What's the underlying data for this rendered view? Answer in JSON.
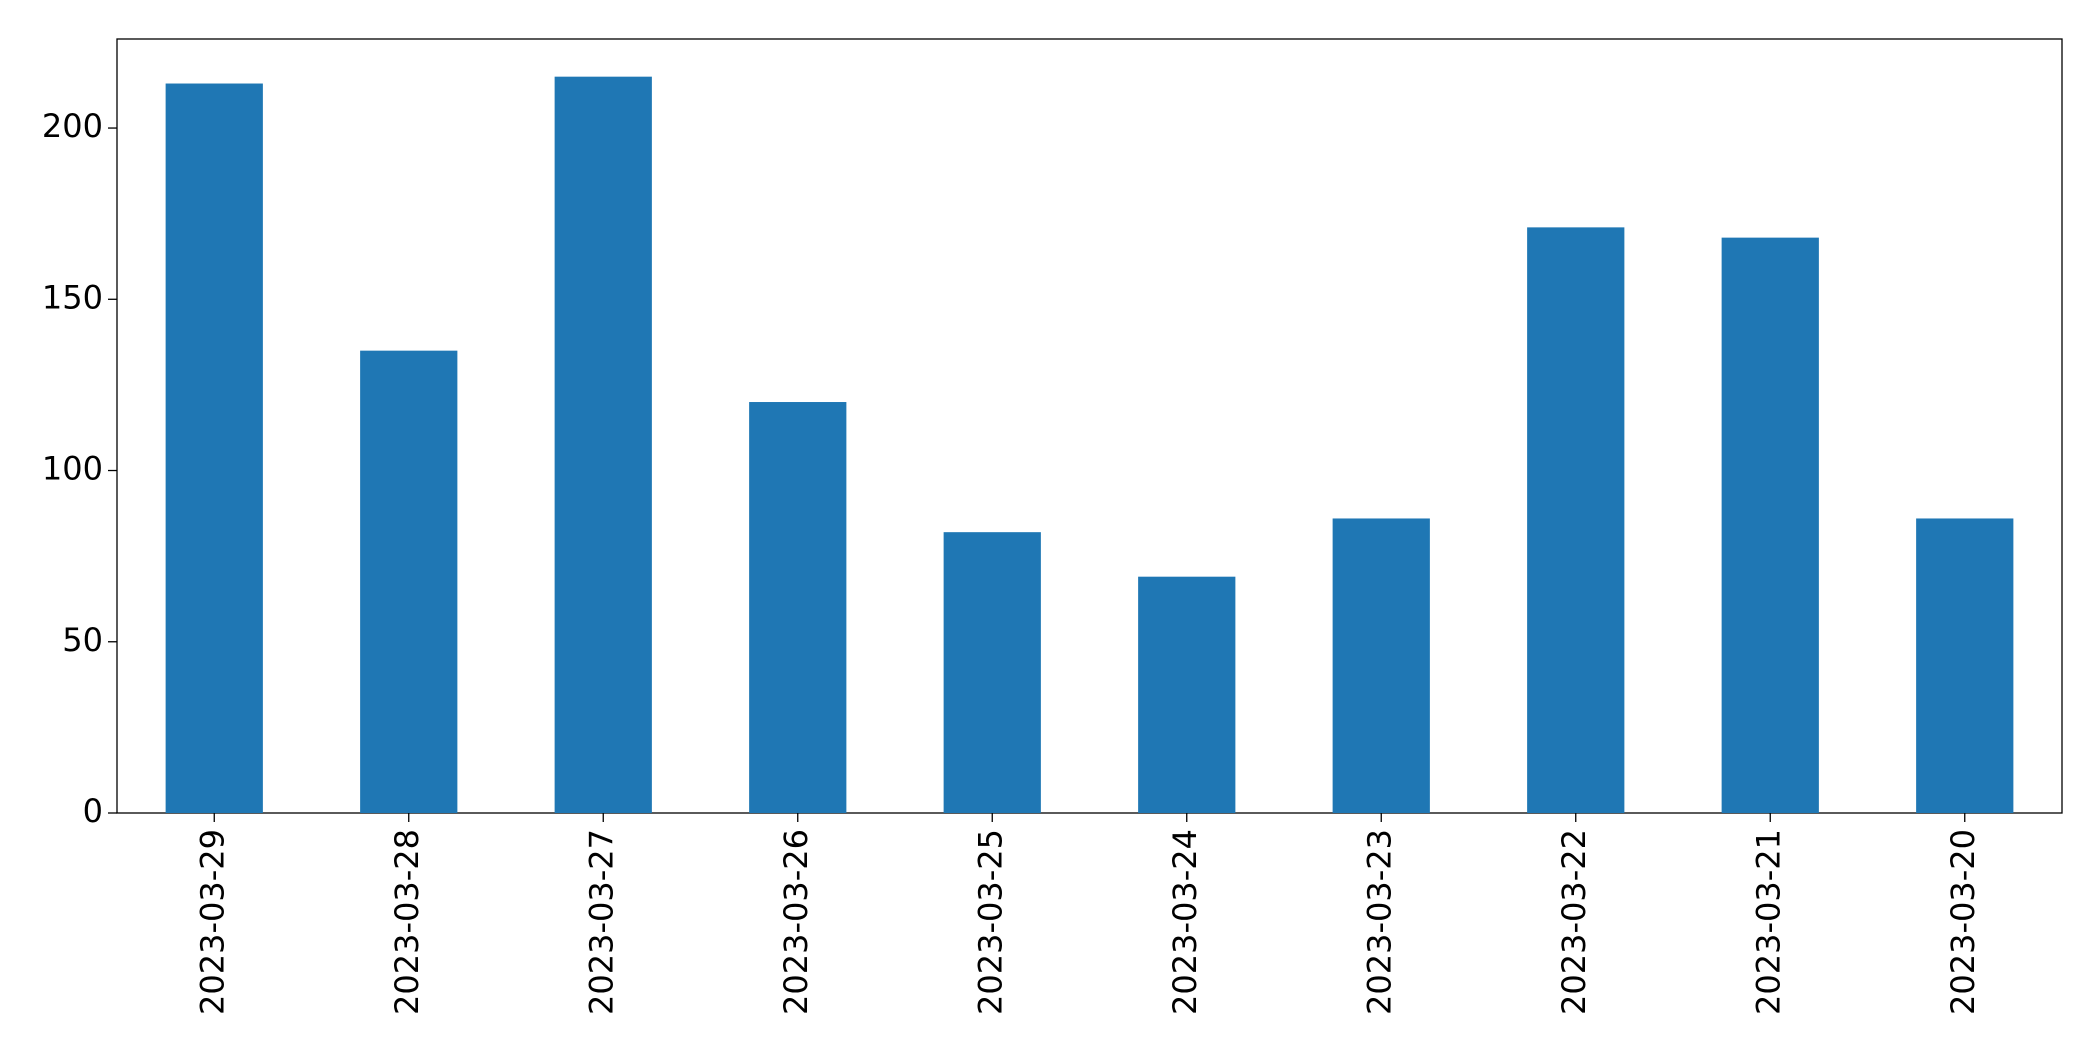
{
  "chart_data": {
    "type": "bar",
    "categories": [
      "2023-03-29",
      "2023-03-28",
      "2023-03-27",
      "2023-03-26",
      "2023-03-25",
      "2023-03-24",
      "2023-03-23",
      "2023-03-22",
      "2023-03-21",
      "2023-03-20"
    ],
    "values": [
      213,
      135,
      215,
      120,
      82,
      69,
      86,
      171,
      168,
      86
    ],
    "color": "#1f77b4",
    "ylim": [
      0,
      226
    ],
    "yticks": [
      0,
      50,
      100,
      150,
      200
    ],
    "grid": false
  }
}
